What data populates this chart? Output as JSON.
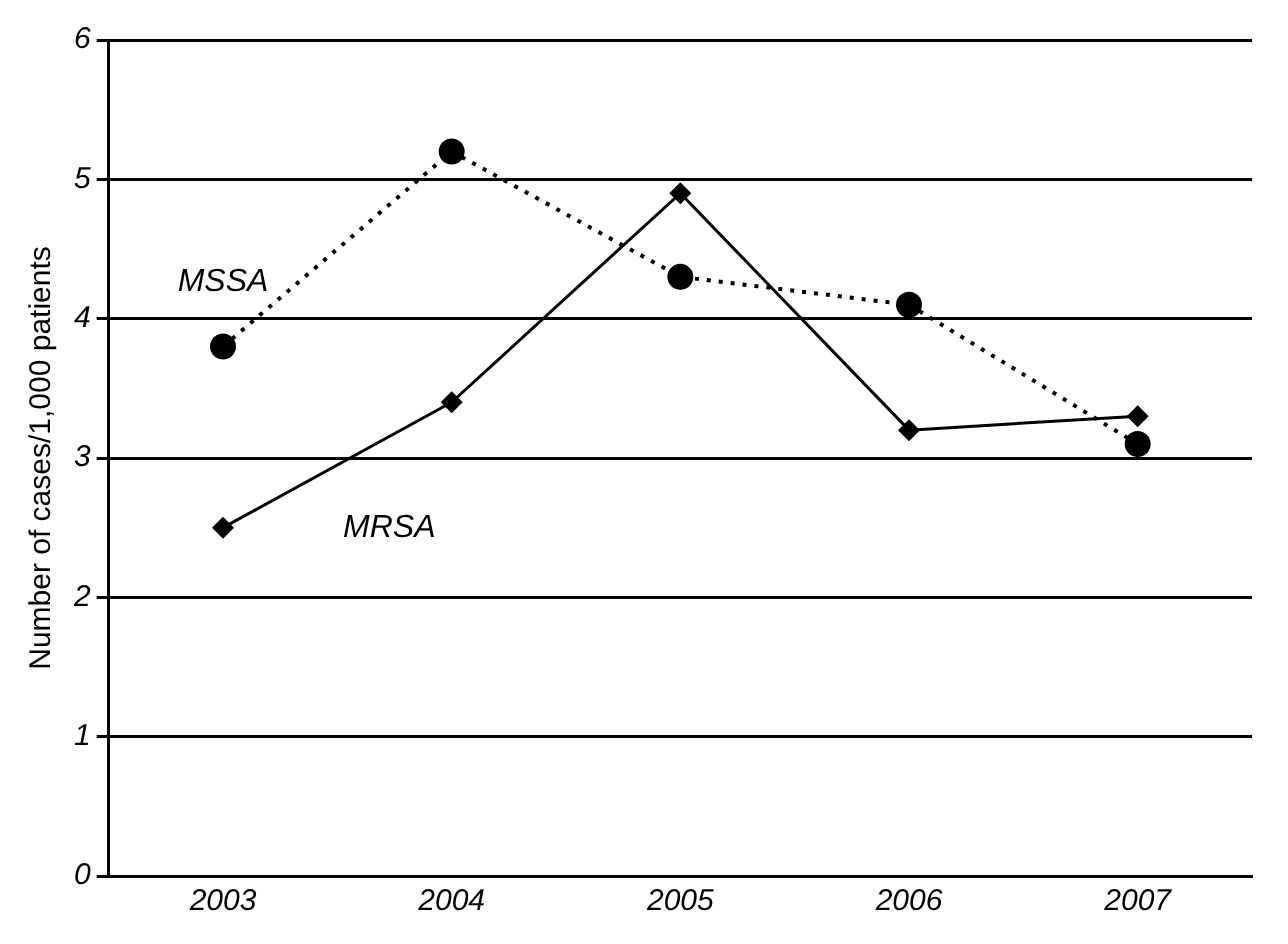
{
  "chart_data": {
    "type": "line",
    "ylabel": "Number of cases/1,000 patients",
    "categories": [
      "2003",
      "2004",
      "2005",
      "2006",
      "2007"
    ],
    "series": [
      {
        "name": "MSSA",
        "color": "#000000",
        "values": [
          3.8,
          5.2,
          4.3,
          4.1,
          3.1
        ],
        "marker": "circle",
        "line_style": "dotted"
      },
      {
        "name": "MRSA",
        "color": "#000000",
        "values": [
          2.5,
          3.4,
          4.9,
          3.2,
          3.3
        ],
        "marker": "diamond",
        "line_style": "solid"
      }
    ],
    "ylim": [
      0,
      6
    ],
    "yticks": [
      0,
      1,
      2,
      3,
      4,
      5,
      6
    ],
    "grid": "y",
    "legend": false
  }
}
